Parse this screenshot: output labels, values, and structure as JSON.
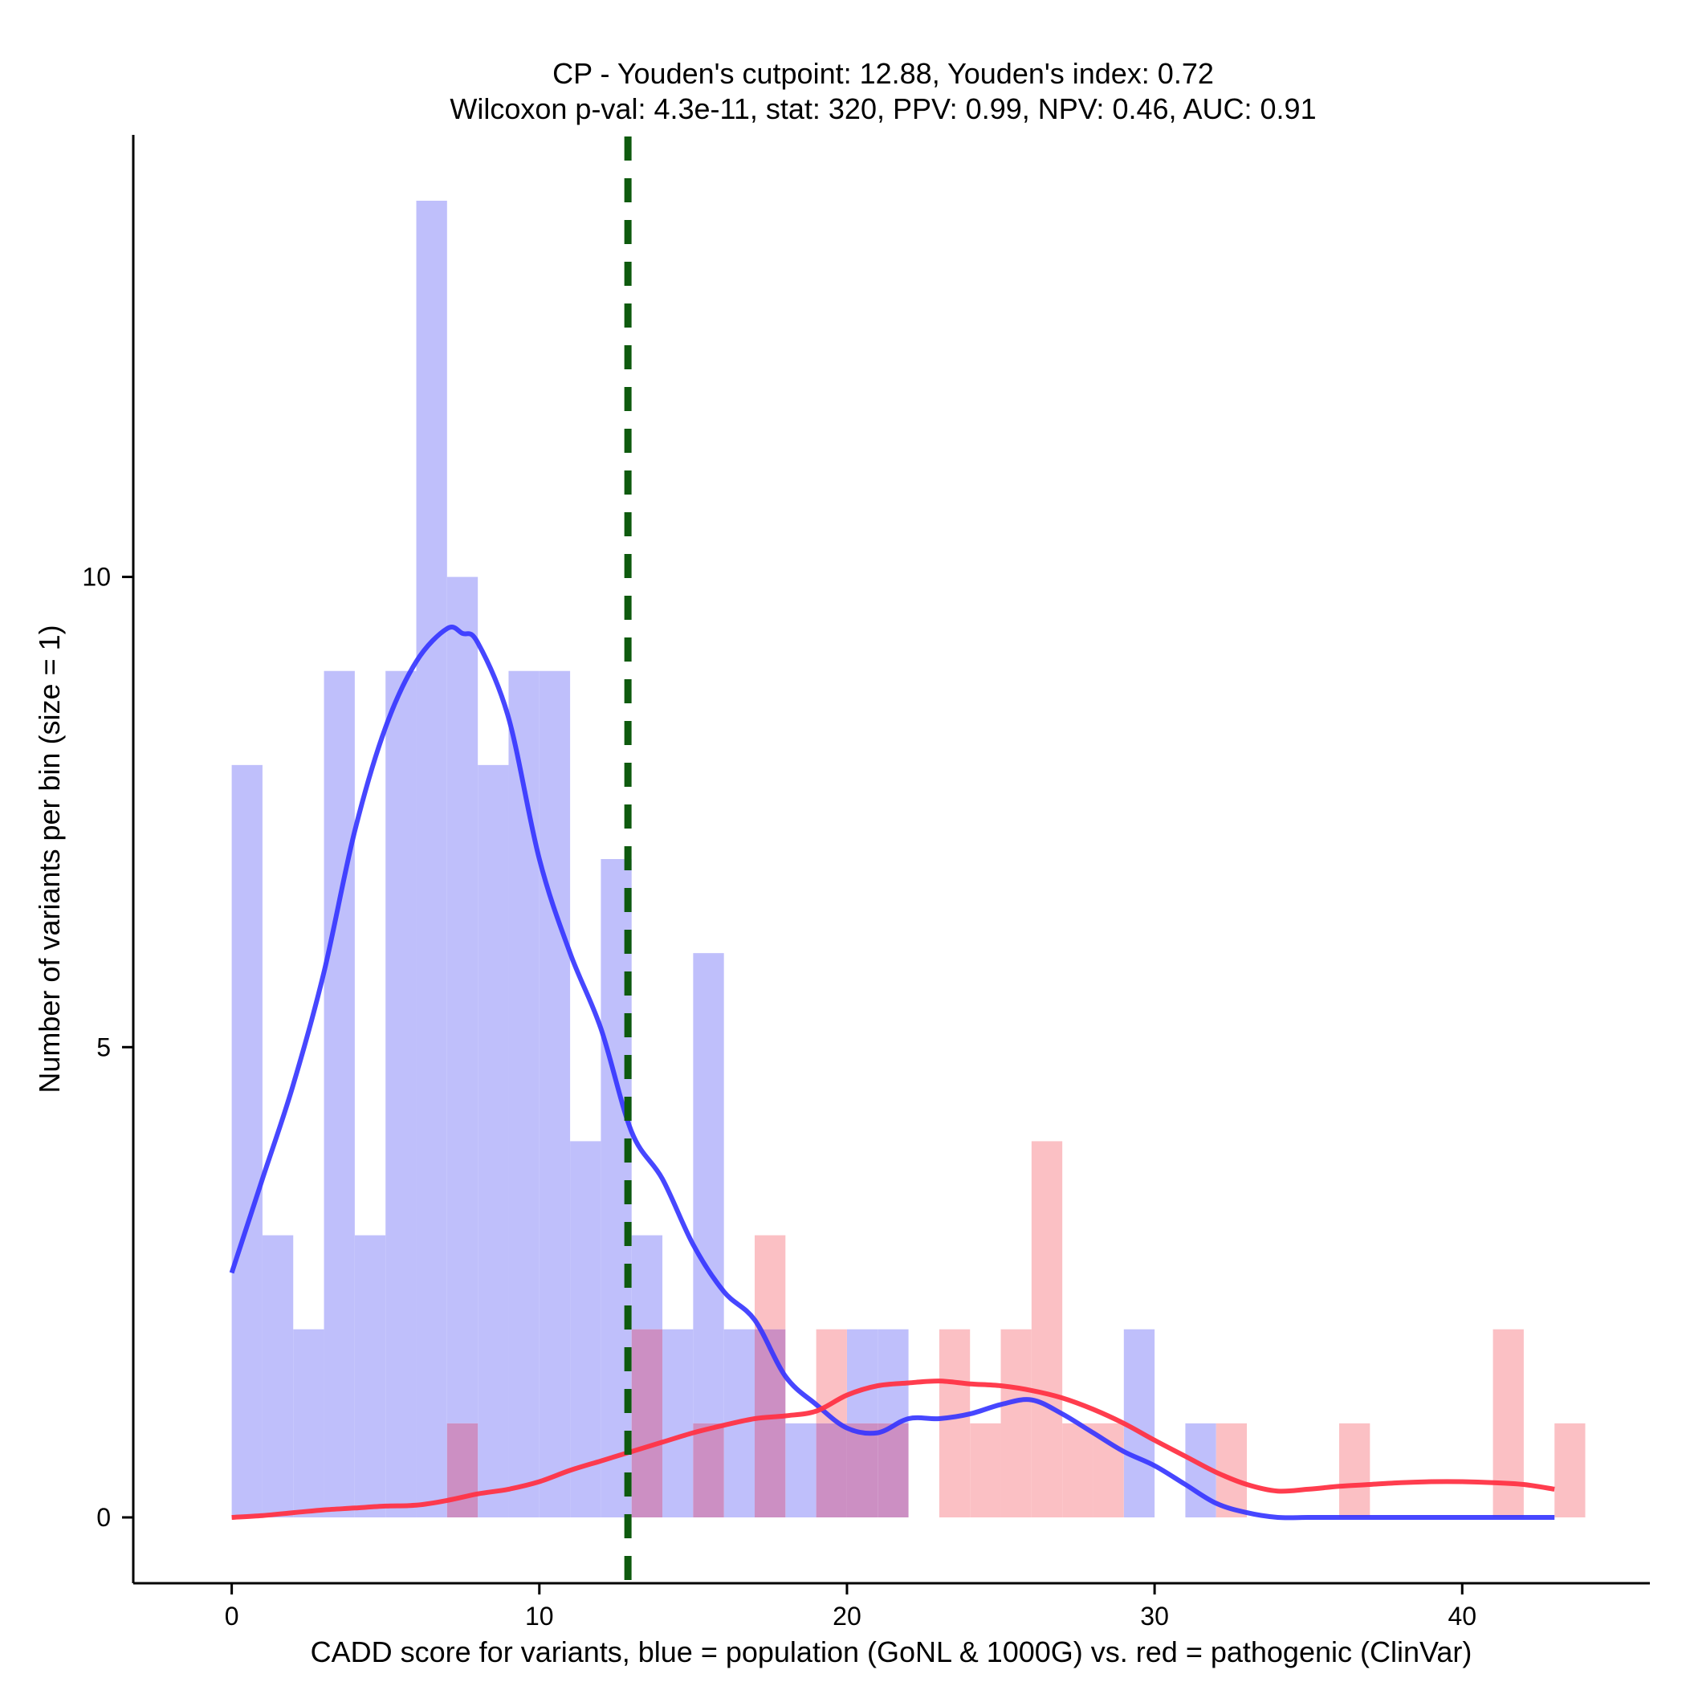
{
  "chart_data": {
    "type": "histogram",
    "title_line1": "CP - Youden's cutpoint: 12.88, Youden's index: 0.72",
    "title_line2": "Wilcoxon p-val: 4.3e-11, stat: 320, PPV: 0.99, NPV: 0.46, AUC: 0.91",
    "xlabel": "CADD score for variants, blue = population (GoNL & 1000G) vs. red = pathogenic (ClinVar)",
    "ylabel": "Number of variants per bin (size = 1)",
    "xlim": [
      -3.2,
      46.1
    ],
    "ylim": [
      -0.7,
      14.7
    ],
    "x_ticks": [
      0,
      10,
      20,
      30,
      40
    ],
    "y_ticks": [
      0,
      5,
      10
    ],
    "bin_width": 1,
    "cutpoint": 12.88,
    "colors": {
      "population": "#3333ff",
      "pathogenic": "#ff3344",
      "population_fill": "#bfbffb",
      "pathogenic_fill": "#fbc0c4",
      "overlap_fill": "#cc8fc3",
      "cutpoint": "#0e5a0e"
    },
    "series": [
      {
        "name": "population (GoNL & 1000G)",
        "bin_starts": [
          0,
          1,
          2,
          3,
          4,
          5,
          6,
          7,
          8,
          9,
          10,
          11,
          12,
          13,
          14,
          15,
          16,
          17,
          18,
          19,
          20,
          21,
          29,
          31
        ],
        "counts": [
          8,
          3,
          2,
          9,
          3,
          9,
          14,
          10,
          8,
          9,
          9,
          4,
          7,
          3,
          2,
          6,
          2,
          2,
          1,
          1,
          2,
          2,
          2,
          1
        ],
        "density_x": [
          0,
          1,
          2,
          3,
          4,
          5,
          6,
          7,
          7.5,
          8,
          9,
          10,
          11,
          12,
          13,
          14,
          15,
          16,
          17,
          18,
          19,
          20,
          21,
          22,
          23,
          24,
          25,
          26,
          27,
          28,
          29,
          30,
          31,
          32,
          33,
          34,
          35,
          36,
          38,
          40,
          42,
          43
        ],
        "density_y": [
          2.6,
          3.6,
          4.6,
          5.8,
          7.3,
          8.4,
          9.1,
          9.45,
          9.4,
          9.3,
          8.5,
          7.0,
          6.0,
          5.2,
          4.1,
          3.6,
          2.9,
          2.4,
          2.1,
          1.5,
          1.2,
          0.95,
          0.9,
          1.05,
          1.05,
          1.1,
          1.2,
          1.25,
          1.1,
          0.9,
          0.7,
          0.55,
          0.35,
          0.15,
          0.05,
          0,
          0,
          0,
          0,
          0,
          0,
          0
        ]
      },
      {
        "name": "pathogenic (ClinVar)",
        "bin_starts": [
          7,
          13,
          15,
          17,
          19,
          20,
          21,
          23,
          24,
          25,
          26,
          27,
          28,
          32,
          36,
          41,
          43
        ],
        "counts": [
          1,
          2,
          1,
          3,
          2,
          1,
          1,
          2,
          1,
          2,
          4,
          1,
          1,
          1,
          1,
          2,
          1
        ],
        "density_x": [
          0,
          1,
          2,
          3,
          4,
          5,
          6,
          7,
          8,
          9,
          10,
          11,
          12,
          13,
          14,
          15,
          16,
          17,
          18,
          19,
          20,
          21,
          22,
          23,
          24,
          25,
          26,
          27,
          28,
          29,
          30,
          31,
          32,
          33,
          34,
          35,
          36,
          37,
          38,
          39,
          40,
          41,
          42,
          43
        ],
        "density_y": [
          0,
          0.02,
          0.05,
          0.08,
          0.1,
          0.12,
          0.13,
          0.18,
          0.25,
          0.3,
          0.38,
          0.5,
          0.6,
          0.7,
          0.8,
          0.9,
          0.98,
          1.05,
          1.08,
          1.13,
          1.3,
          1.4,
          1.43,
          1.45,
          1.42,
          1.4,
          1.35,
          1.27,
          1.15,
          1.0,
          0.82,
          0.65,
          0.48,
          0.35,
          0.28,
          0.3,
          0.33,
          0.35,
          0.37,
          0.38,
          0.38,
          0.37,
          0.35,
          0.3
        ]
      }
    ]
  }
}
